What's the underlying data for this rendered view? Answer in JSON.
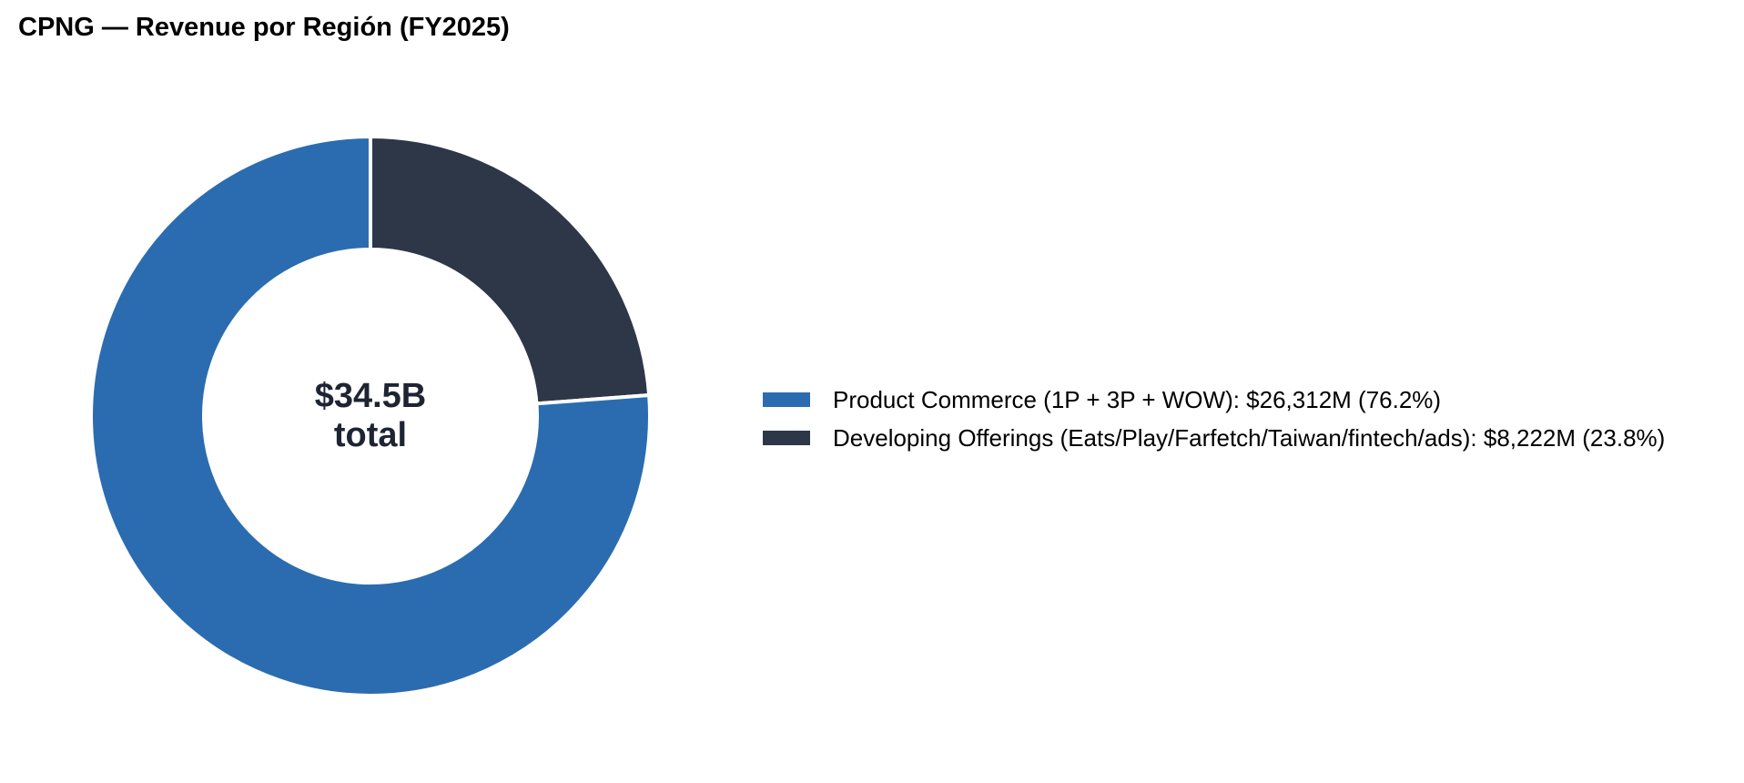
{
  "chart_data": {
    "type": "pie",
    "title": "CPNG — Revenue por Región (FY2025)",
    "center_label": {
      "value": "$34.5B",
      "sub": "total"
    },
    "slices": [
      {
        "label": "Product Commerce (1P + 3P + WOW): $26,312M (76.2%)",
        "value": 26312,
        "percent": 76.2,
        "color": "#2b6cb0"
      },
      {
        "label": "Developing Offerings (Eats/Play/Farfetch/Taiwan/fintech/ads): $8,222M (23.8%)",
        "value": 8222,
        "percent": 23.8,
        "color": "#2d3748"
      }
    ],
    "legend_position": "right",
    "donut": true
  }
}
